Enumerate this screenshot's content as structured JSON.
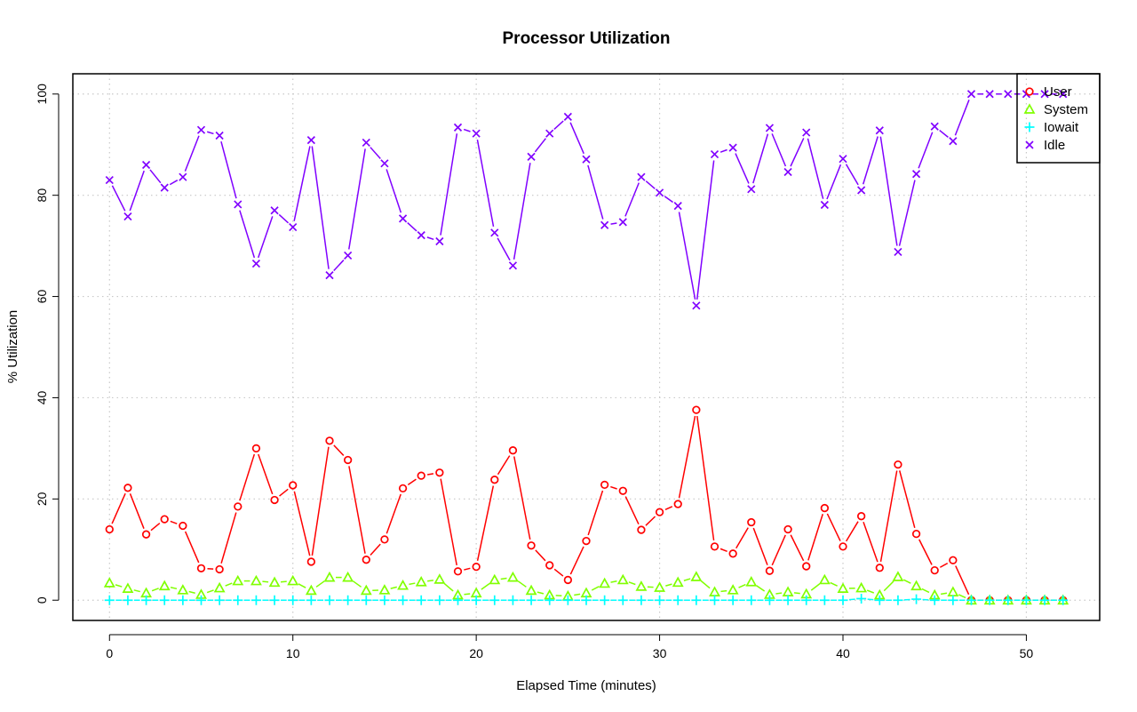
{
  "chart_data": {
    "type": "line",
    "title": "Processor Utilization",
    "xlabel": "Elapsed Time (minutes)",
    "ylabel": "% Utilization",
    "xlim": [
      -2,
      54
    ],
    "ylim": [
      -4,
      104
    ],
    "xticks": [
      0,
      10,
      20,
      30,
      40,
      50
    ],
    "yticks": [
      0,
      20,
      40,
      60,
      80,
      100
    ],
    "grid": true,
    "legend_position": "top-right",
    "x": [
      0,
      1,
      2,
      3,
      4,
      5,
      6,
      7,
      8,
      9,
      10,
      11,
      12,
      13,
      14,
      15,
      16,
      17,
      18,
      19,
      20,
      21,
      22,
      23,
      24,
      25,
      26,
      27,
      28,
      29,
      30,
      31,
      32,
      33,
      34,
      35,
      36,
      37,
      38,
      39,
      40,
      41,
      42,
      43,
      44,
      45,
      46,
      47,
      48,
      49,
      50,
      51,
      52
    ],
    "series": [
      {
        "name": "User",
        "color": "#ff0000",
        "marker": "circle",
        "values": [
          14,
          22.2,
          13,
          16,
          14.7,
          6.3,
          6.1,
          18.5,
          30,
          19.8,
          22.7,
          7.6,
          31.5,
          27.7,
          8,
          12,
          22.1,
          24.6,
          25.2,
          5.7,
          6.6,
          23.8,
          29.6,
          10.8,
          6.9,
          4,
          11.7,
          22.8,
          21.6,
          13.9,
          17.4,
          19,
          37.6,
          10.6,
          9.2,
          15.4,
          5.8,
          14,
          6.7,
          18.2,
          10.6,
          16.6,
          6.4,
          26.8,
          13.1,
          5.9,
          7.9,
          0,
          0,
          0,
          0,
          0,
          0
        ]
      },
      {
        "name": "System",
        "color": "#80ff00",
        "marker": "triangle",
        "values": [
          3.4,
          2.3,
          1.4,
          2.8,
          2,
          1.1,
          2.4,
          3.8,
          3.8,
          3.5,
          3.8,
          1.9,
          4.5,
          4.5,
          1.9,
          2,
          2.9,
          3.6,
          4.1,
          1,
          1.4,
          4,
          4.5,
          1.9,
          1,
          0.8,
          1.4,
          3.3,
          4,
          2.7,
          2.5,
          3.5,
          4.6,
          1.6,
          2,
          3.6,
          1.1,
          1.6,
          1.2,
          4,
          2.3,
          2.4,
          1,
          4.6,
          2.8,
          1,
          1.6,
          0,
          0,
          0,
          0,
          0,
          0
        ]
      },
      {
        "name": "Iowait",
        "color": "#00ffff",
        "marker": "plus",
        "values": [
          0,
          0,
          0,
          0,
          0,
          0,
          0,
          0,
          0,
          0,
          0,
          0,
          0,
          0,
          0,
          0,
          0,
          0,
          0,
          0,
          0,
          0,
          0,
          0,
          0,
          0,
          0,
          0,
          0,
          0,
          0,
          0,
          0,
          0,
          0,
          0,
          0,
          0,
          0,
          0,
          0,
          0.3,
          0,
          0,
          0.2,
          0,
          0,
          0,
          0,
          0,
          0,
          0,
          0
        ]
      },
      {
        "name": "Idle",
        "color": "#8000ff",
        "marker": "x",
        "values": [
          83,
          75.8,
          86,
          81.5,
          83.6,
          92.9,
          91.8,
          78.2,
          66.5,
          77,
          73.7,
          90.9,
          64.2,
          68.1,
          90.4,
          86.3,
          75.4,
          72.1,
          70.9,
          93.4,
          92.2,
          72.6,
          66.1,
          87.6,
          92.2,
          95.5,
          87.1,
          74.1,
          74.7,
          83.6,
          80.5,
          77.9,
          58.2,
          88.1,
          89.4,
          81.2,
          93.3,
          84.6,
          92.4,
          78.1,
          87.2,
          81,
          92.8,
          68.8,
          84.2,
          93.6,
          90.7,
          100,
          100,
          100,
          100,
          100,
          100
        ]
      }
    ]
  }
}
